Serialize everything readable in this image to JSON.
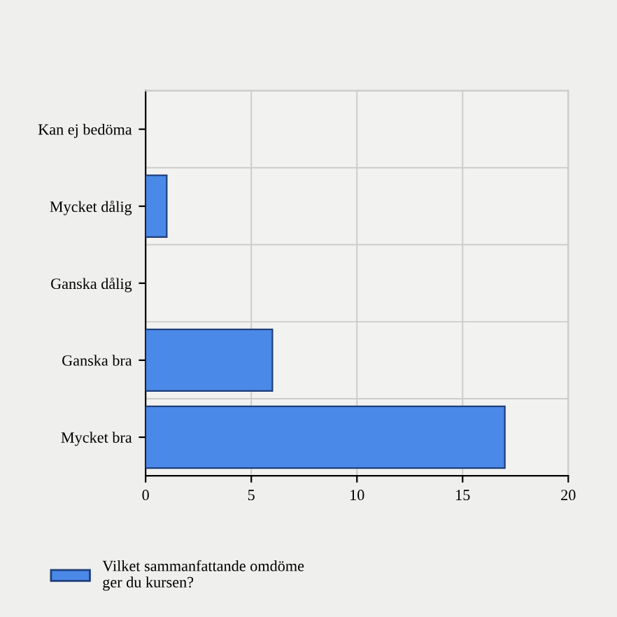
{
  "chart_data": {
    "type": "bar",
    "orientation": "horizontal",
    "categories": [
      "Kan ej bedöma",
      "Mycket dålig",
      "Ganska dålig",
      "Ganska bra",
      "Mycket bra"
    ],
    "series": [
      {
        "name": "Vilket sammanfattande omdöme\nger du kursen?",
        "color": "#4a89e8",
        "values": [
          0,
          1,
          0,
          6,
          17
        ]
      }
    ],
    "xlim": [
      0,
      20
    ],
    "xticks": [
      0,
      5,
      10,
      15,
      20
    ],
    "grid": true,
    "legend": "bottom left"
  }
}
